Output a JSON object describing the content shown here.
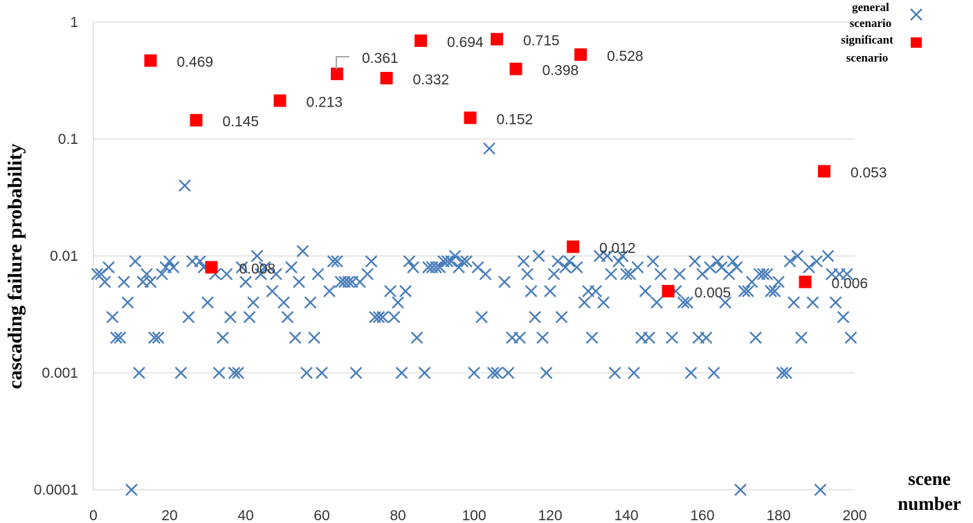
{
  "chart_data": {
    "type": "scatter",
    "title": "",
    "xlabel": [
      "scene",
      "number"
    ],
    "ylabel": "cascading failure probability",
    "xlim": [
      0,
      200
    ],
    "ylim": [
      0.0001,
      1
    ],
    "y_scale": "log",
    "grid": "horizontal",
    "legend_position": "top-right",
    "x_ticks": [
      "0",
      "20",
      "40",
      "60",
      "80",
      "100",
      "120",
      "140",
      "160",
      "180",
      "200"
    ],
    "y_ticks": [
      "0.0001",
      "0.001",
      "0.01",
      "0.1",
      "1"
    ],
    "colors": {
      "general": "#4a7ebb",
      "significant": "#ff0000"
    },
    "series": [
      {
        "name": [
          "general",
          "scenario"
        ],
        "marker": "x",
        "points": [
          [
            1,
            0.007
          ],
          [
            2,
            0.007
          ],
          [
            3,
            0.006
          ],
          [
            4,
            0.008
          ],
          [
            5,
            0.003
          ],
          [
            6,
            0.002
          ],
          [
            7,
            0.002
          ],
          [
            8,
            0.006
          ],
          [
            9,
            0.004
          ],
          [
            10,
            0.0001
          ],
          [
            11,
            0.009
          ],
          [
            12,
            0.001
          ],
          [
            13,
            0.006
          ],
          [
            14,
            0.007
          ],
          [
            15,
            0.006
          ],
          [
            16,
            0.002
          ],
          [
            17,
            0.002
          ],
          [
            18,
            0.007
          ],
          [
            19,
            0.008
          ],
          [
            20,
            0.009
          ],
          [
            21,
            0.008
          ],
          [
            23,
            0.001
          ],
          [
            24,
            0.04
          ],
          [
            25,
            0.003
          ],
          [
            26,
            0.009
          ],
          [
            28,
            0.009
          ],
          [
            29,
            0.008
          ],
          [
            30,
            0.004
          ],
          [
            32,
            0.007
          ],
          [
            33,
            0.001
          ],
          [
            34,
            0.002
          ],
          [
            35,
            0.007
          ],
          [
            36,
            0.003
          ],
          [
            37,
            0.001
          ],
          [
            38,
            0.001
          ],
          [
            39,
            0.008
          ],
          [
            40,
            0.006
          ],
          [
            41,
            0.003
          ],
          [
            42,
            0.004
          ],
          [
            43,
            0.01
          ],
          [
            44,
            0.007
          ],
          [
            45,
            0.008
          ],
          [
            47,
            0.005
          ],
          [
            48,
            0.007
          ],
          [
            50,
            0.004
          ],
          [
            51,
            0.003
          ],
          [
            52,
            0.008
          ],
          [
            53,
            0.002
          ],
          [
            54,
            0.006
          ],
          [
            55,
            0.011
          ],
          [
            56,
            0.001
          ],
          [
            57,
            0.004
          ],
          [
            58,
            0.002
          ],
          [
            59,
            0.007
          ],
          [
            60,
            0.001
          ],
          [
            62,
            0.005
          ],
          [
            63,
            0.009
          ],
          [
            64,
            0.009
          ],
          [
            65,
            0.006
          ],
          [
            66,
            0.006
          ],
          [
            67,
            0.006
          ],
          [
            68,
            0.006
          ],
          [
            69,
            0.001
          ],
          [
            70,
            0.006
          ],
          [
            72,
            0.007
          ],
          [
            73,
            0.009
          ],
          [
            74,
            0.003
          ],
          [
            75,
            0.003
          ],
          [
            76,
            0.003
          ],
          [
            78,
            0.005
          ],
          [
            79,
            0.003
          ],
          [
            80,
            0.004
          ],
          [
            81,
            0.001
          ],
          [
            82,
            0.005
          ],
          [
            83,
            0.009
          ],
          [
            84,
            0.008
          ],
          [
            85,
            0.002
          ],
          [
            87,
            0.001
          ],
          [
            88,
            0.008
          ],
          [
            89,
            0.008
          ],
          [
            90,
            0.008
          ],
          [
            91,
            0.008
          ],
          [
            92,
            0.009
          ],
          [
            93,
            0.009
          ],
          [
            94,
            0.009
          ],
          [
            95,
            0.01
          ],
          [
            96,
            0.008
          ],
          [
            97,
            0.009
          ],
          [
            98,
            0.009
          ],
          [
            100,
            0.001
          ],
          [
            101,
            0.008
          ],
          [
            102,
            0.003
          ],
          [
            103,
            0.007
          ],
          [
            104,
            0.083
          ],
          [
            105,
            0.001
          ],
          [
            106,
            0.001
          ],
          [
            108,
            0.006
          ],
          [
            109,
            0.001
          ],
          [
            110,
            0.002
          ],
          [
            112,
            0.002
          ],
          [
            113,
            0.009
          ],
          [
            114,
            0.007
          ],
          [
            115,
            0.005
          ],
          [
            116,
            0.003
          ],
          [
            117,
            0.01
          ],
          [
            118,
            0.002
          ],
          [
            119,
            0.001
          ],
          [
            120,
            0.005
          ],
          [
            121,
            0.007
          ],
          [
            122,
            0.009
          ],
          [
            123,
            0.003
          ],
          [
            124,
            0.008
          ],
          [
            125,
            0.009
          ],
          [
            127,
            0.008
          ],
          [
            129,
            0.004
          ],
          [
            130,
            0.005
          ],
          [
            131,
            0.002
          ],
          [
            132,
            0.005
          ],
          [
            133,
            0.01
          ],
          [
            134,
            0.004
          ],
          [
            135,
            0.01
          ],
          [
            136,
            0.007
          ],
          [
            137,
            0.001
          ],
          [
            138,
            0.009
          ],
          [
            139,
            0.01
          ],
          [
            140,
            0.007
          ],
          [
            141,
            0.007
          ],
          [
            142,
            0.001
          ],
          [
            143,
            0.008
          ],
          [
            144,
            0.002
          ],
          [
            145,
            0.005
          ],
          [
            146,
            0.002
          ],
          [
            147,
            0.009
          ],
          [
            148,
            0.004
          ],
          [
            149,
            0.007
          ],
          [
            152,
            0.002
          ],
          [
            153,
            0.005
          ],
          [
            154,
            0.007
          ],
          [
            155,
            0.004
          ],
          [
            156,
            0.004
          ],
          [
            157,
            0.001
          ],
          [
            158,
            0.009
          ],
          [
            159,
            0.002
          ],
          [
            160,
            0.007
          ],
          [
            161,
            0.002
          ],
          [
            162,
            0.008
          ],
          [
            163,
            0.001
          ],
          [
            164,
            0.009
          ],
          [
            165,
            0.008
          ],
          [
            166,
            0.004
          ],
          [
            167,
            0.007
          ],
          [
            168,
            0.009
          ],
          [
            169,
            0.008
          ],
          [
            170,
            0.0001
          ],
          [
            171,
            0.005
          ],
          [
            172,
            0.005
          ],
          [
            173,
            0.006
          ],
          [
            174,
            0.002
          ],
          [
            175,
            0.007
          ],
          [
            176,
            0.007
          ],
          [
            177,
            0.007
          ],
          [
            178,
            0.005
          ],
          [
            179,
            0.005
          ],
          [
            180,
            0.006
          ],
          [
            181,
            0.001
          ],
          [
            182,
            0.001
          ],
          [
            183,
            0.009
          ],
          [
            184,
            0.004
          ],
          [
            185,
            0.01
          ],
          [
            186,
            0.002
          ],
          [
            188,
            0.008
          ],
          [
            189,
            0.004
          ],
          [
            190,
            0.009
          ],
          [
            191,
            0.0001
          ],
          [
            193,
            0.01
          ],
          [
            194,
            0.007
          ],
          [
            195,
            0.004
          ],
          [
            196,
            0.007
          ],
          [
            197,
            0.003
          ],
          [
            198,
            0.007
          ],
          [
            199,
            0.002
          ]
        ]
      },
      {
        "name": [
          "significant",
          "scenario"
        ],
        "marker": "square",
        "points": [
          [
            15,
            0.469
          ],
          [
            27,
            0.145
          ],
          [
            31,
            0.008
          ],
          [
            49,
            0.213
          ],
          [
            64,
            0.361
          ],
          [
            77,
            0.332
          ],
          [
            86,
            0.694
          ],
          [
            99,
            0.152
          ],
          [
            106,
            0.715
          ],
          [
            111,
            0.398
          ],
          [
            126,
            0.012
          ],
          [
            128,
            0.528
          ],
          [
            151,
            0.005
          ],
          [
            187,
            0.006
          ],
          [
            192,
            0.053
          ]
        ],
        "labels": [
          "0.469",
          "0.145",
          "0.008",
          "0.213",
          "0.361",
          "0.332",
          "0.694",
          "0.152",
          "0.715",
          "0.398",
          "0.012",
          "0.528",
          "0.005",
          "0.006",
          "0.053"
        ]
      }
    ]
  }
}
